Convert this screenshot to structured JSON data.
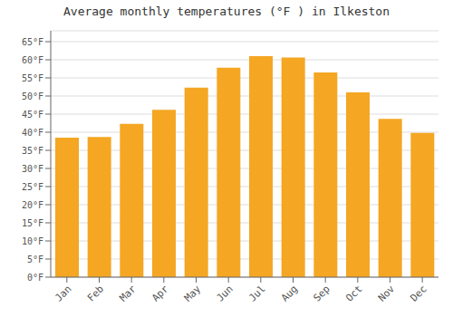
{
  "chart_data": {
    "type": "bar",
    "title": "Average monthly temperatures (°F ) in Ilkeston",
    "categories": [
      "Jan",
      "Feb",
      "Mar",
      "Apr",
      "May",
      "Jun",
      "Jul",
      "Aug",
      "Sep",
      "Oct",
      "Nov",
      "Dec"
    ],
    "values": [
      38.5,
      38.7,
      42.3,
      46.2,
      52.3,
      57.8,
      61.0,
      60.6,
      56.5,
      51.0,
      43.7,
      39.8
    ],
    "color": "#F5A623",
    "ylim": [
      0,
      68
    ],
    "yticks": [
      {
        "value": 0,
        "label": "0°F"
      },
      {
        "value": 5,
        "label": "5°F"
      },
      {
        "value": 10,
        "label": "10°F"
      },
      {
        "value": 15,
        "label": "15°F"
      },
      {
        "value": 20,
        "label": "20°F"
      },
      {
        "value": 25,
        "label": "25°F"
      },
      {
        "value": 30,
        "label": "30°F"
      },
      {
        "value": 35,
        "label": "35°F"
      },
      {
        "value": 40,
        "label": "40°F"
      },
      {
        "value": 45,
        "label": "45°F"
      },
      {
        "value": 50,
        "label": "50°F"
      },
      {
        "value": 55,
        "label": "55°F"
      },
      {
        "value": 60,
        "label": "60°F"
      },
      {
        "value": 65,
        "label": "65°F"
      }
    ],
    "grid": true
  }
}
